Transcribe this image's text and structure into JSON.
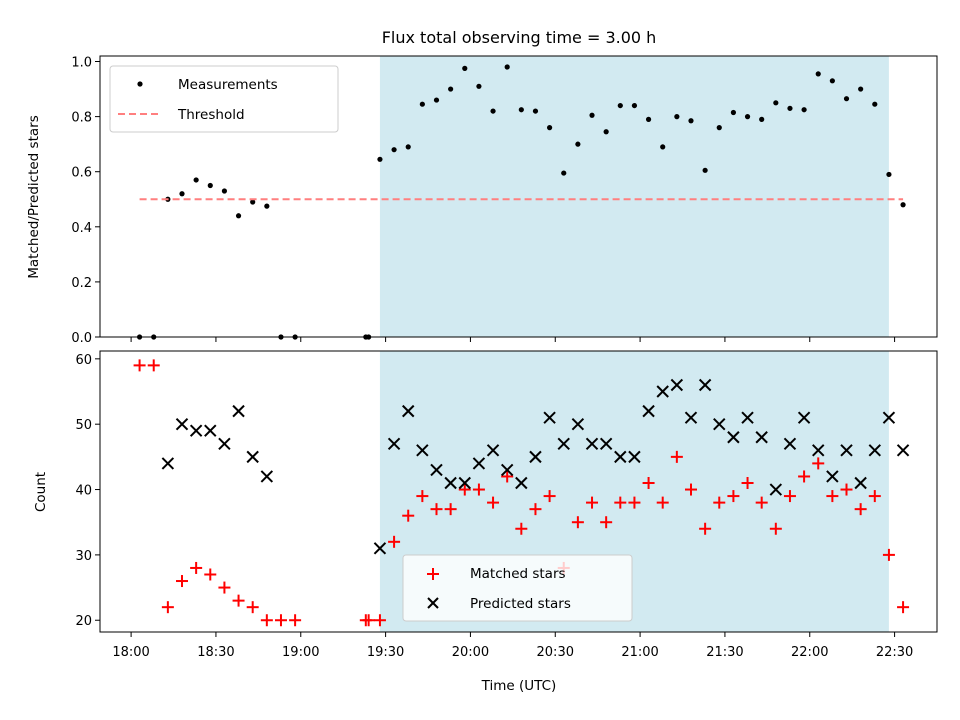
{
  "chart_data": [
    {
      "type": "scatter",
      "title": "Flux total observing time = 3.00 h",
      "xlabel": "",
      "ylabel": "Matched/Predicted stars",
      "ylim": [
        0.0,
        1.02
      ],
      "yticks": [
        "0.0",
        "0.2",
        "0.4",
        "0.6",
        "0.8",
        "1.0"
      ],
      "grid": false,
      "legend_position": "upper left",
      "highlight_span": {
        "start": "19:28",
        "end": "22:28",
        "color": "#add8e6"
      },
      "series": [
        {
          "name": "Measurements",
          "marker": "dot",
          "color": "#000000",
          "x": [
            "18:03",
            "18:08",
            "18:13",
            "18:18",
            "18:23",
            "18:28",
            "18:33",
            "18:38",
            "18:43",
            "18:48",
            "18:53",
            "18:58",
            "19:23",
            "19:24",
            "19:28",
            "19:33",
            "19:38",
            "19:43",
            "19:48",
            "19:53",
            "19:58",
            "20:03",
            "20:08",
            "20:13",
            "20:18",
            "20:23",
            "20:28",
            "20:33",
            "20:38",
            "20:43",
            "20:48",
            "20:53",
            "20:58",
            "21:03",
            "21:08",
            "21:13",
            "21:18",
            "21:23",
            "21:28",
            "21:33",
            "21:38",
            "21:43",
            "21:48",
            "21:53",
            "21:58",
            "22:03",
            "22:08",
            "22:13",
            "22:18",
            "22:23",
            "22:28",
            "22:33"
          ],
          "y": [
            0.0,
            0.0,
            0.5,
            0.52,
            0.57,
            0.55,
            0.53,
            0.44,
            0.49,
            0.475,
            0.0,
            0.0,
            0.0,
            0.0,
            0.645,
            0.68,
            0.69,
            0.845,
            0.86,
            0.9,
            0.975,
            0.91,
            0.82,
            0.98,
            0.825,
            0.82,
            0.76,
            0.595,
            0.7,
            0.805,
            0.745,
            0.84,
            0.84,
            0.79,
            0.69,
            0.8,
            0.785,
            0.605,
            0.76,
            0.815,
            0.8,
            0.79,
            0.85,
            0.83,
            0.825,
            0.955,
            0.93,
            0.865,
            0.9,
            0.845,
            0.59,
            0.48
          ]
        },
        {
          "name": "Threshold",
          "style": "dashed",
          "color": "#ff7f7f",
          "x": [
            "18:03",
            "22:33"
          ],
          "y": [
            0.5,
            0.5
          ]
        }
      ]
    },
    {
      "type": "scatter",
      "title": "",
      "xlabel": "Time (UTC)",
      "ylabel": "Count",
      "ylim": [
        18.2,
        61.2
      ],
      "yticks": [
        "20",
        "30",
        "40",
        "50",
        "60"
      ],
      "xticks": [
        "18:00",
        "18:30",
        "19:00",
        "19:30",
        "20:00",
        "20:30",
        "21:00",
        "21:30",
        "22:00",
        "22:30"
      ],
      "grid": false,
      "legend_position": "lower center",
      "highlight_span": {
        "start": "19:28",
        "end": "22:28",
        "color": "#add8e6"
      },
      "series": [
        {
          "name": "Matched stars",
          "marker": "plus",
          "color": "#ff0000",
          "x": [
            "18:03",
            "18:08",
            "18:13",
            "18:18",
            "18:23",
            "18:28",
            "18:33",
            "18:38",
            "18:43",
            "18:48",
            "18:53",
            "18:58",
            "19:23",
            "19:24",
            "19:28",
            "19:33",
            "19:38",
            "19:43",
            "19:48",
            "19:53",
            "19:58",
            "20:03",
            "20:08",
            "20:13",
            "20:18",
            "20:23",
            "20:28",
            "20:33",
            "20:38",
            "20:43",
            "20:48",
            "20:53",
            "20:58",
            "21:03",
            "21:08",
            "21:13",
            "21:18",
            "21:23",
            "21:28",
            "21:33",
            "21:38",
            "21:43",
            "21:48",
            "21:53",
            "21:58",
            "22:03",
            "22:08",
            "22:13",
            "22:18",
            "22:23",
            "22:28",
            "22:33"
          ],
          "y": [
            59,
            59,
            22,
            26,
            28,
            27,
            25,
            23,
            22,
            20,
            20,
            20,
            20,
            20,
            20,
            32,
            36,
            39,
            37,
            37,
            40,
            40,
            38,
            42,
            34,
            37,
            39,
            28,
            35,
            38,
            35,
            38,
            38,
            41,
            38,
            45,
            40,
            34,
            38,
            39,
            41,
            38,
            34,
            39,
            42,
            44,
            39,
            40,
            37,
            39,
            30,
            22
          ]
        },
        {
          "name": "Predicted stars",
          "marker": "x",
          "color": "#000000",
          "x": [
            "18:13",
            "18:18",
            "18:23",
            "18:28",
            "18:33",
            "18:38",
            "18:43",
            "18:48",
            "19:28",
            "19:33",
            "19:38",
            "19:43",
            "19:48",
            "19:53",
            "19:58",
            "20:03",
            "20:08",
            "20:13",
            "20:18",
            "20:23",
            "20:28",
            "20:33",
            "20:38",
            "20:43",
            "20:48",
            "20:53",
            "20:58",
            "21:03",
            "21:08",
            "21:13",
            "21:18",
            "21:23",
            "21:28",
            "21:33",
            "21:38",
            "21:43",
            "21:48",
            "21:53",
            "21:58",
            "22:03",
            "22:08",
            "22:13",
            "22:18",
            "22:23",
            "22:28",
            "22:33"
          ],
          "y": [
            44,
            50,
            49,
            49,
            47,
            52,
            45,
            42,
            31,
            47,
            52,
            46,
            43,
            41,
            41,
            44,
            46,
            43,
            41,
            45,
            51,
            47,
            50,
            47,
            47,
            45,
            45,
            52,
            55,
            56,
            51,
            56,
            50,
            48,
            51,
            48,
            40,
            47,
            51,
            46,
            42,
            46,
            41,
            46,
            51,
            46
          ]
        }
      ]
    }
  ]
}
